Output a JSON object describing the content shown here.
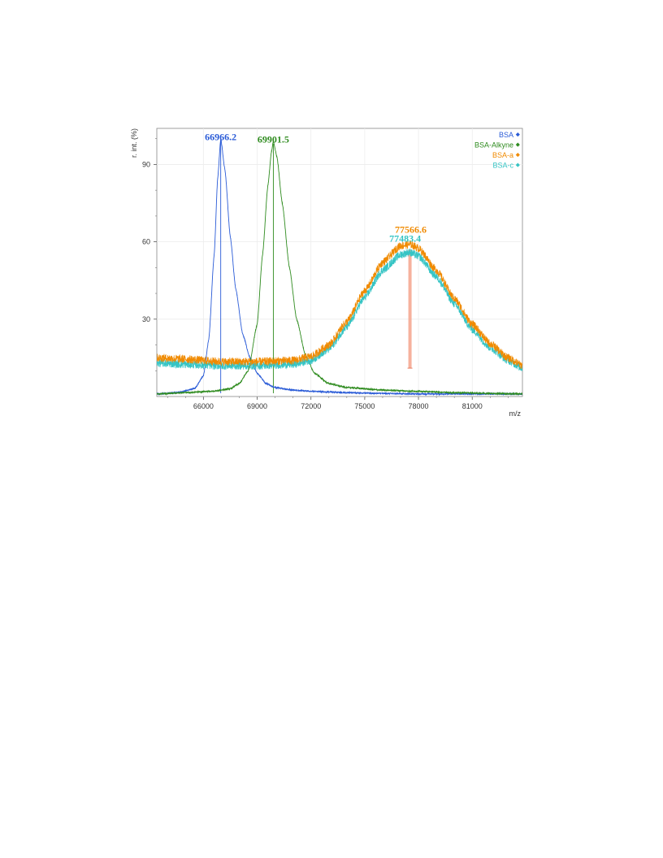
{
  "chart_data": {
    "type": "line",
    "xlabel": "m/z",
    "ylabel": "r. int. (%)",
    "xlim": [
      63400,
      83800
    ],
    "ylim": [
      0,
      104
    ],
    "x_ticks": [
      66000,
      69000,
      72000,
      75000,
      78000,
      81000
    ],
    "x_tick_labels": [
      "66000",
      "69000",
      "72000",
      "75000",
      "78000",
      "81000"
    ],
    "y_ticks": [
      30,
      60,
      90
    ],
    "y_tick_labels": [
      "30",
      "60",
      "90"
    ],
    "grid": true,
    "legend_position": "top-right",
    "series": [
      {
        "name": "BSA",
        "color": "#2a5bd7",
        "x": [
          63500,
          64500,
          65500,
          66000,
          66300,
          66600,
          66800,
          66967,
          67200,
          67500,
          67800,
          68200,
          68600,
          69000,
          69500,
          70000,
          71000,
          72000,
          74000,
          76000,
          78000,
          80000,
          82000,
          83800
        ],
        "values": [
          1,
          1.5,
          3,
          8,
          22,
          55,
          85,
          100,
          88,
          62,
          42,
          24,
          15,
          9,
          5,
          3.5,
          2.5,
          2,
          1.5,
          1.2,
          1,
          1,
          1,
          1
        ]
      },
      {
        "name": "BSA-Alkyne",
        "color": "#2e8b1e",
        "x": [
          63500,
          65000,
          66500,
          67500,
          68000,
          68500,
          69000,
          69300,
          69600,
          69800,
          69902,
          70100,
          70400,
          70800,
          71200,
          71700,
          72200,
          73000,
          74000,
          76000,
          78000,
          80000,
          82000,
          83800
        ],
        "values": [
          1,
          1.5,
          2,
          3,
          5,
          10,
          28,
          55,
          82,
          95,
          99,
          93,
          75,
          50,
          30,
          16,
          9,
          5,
          3.5,
          2.5,
          2,
          1.5,
          1.2,
          1
        ]
      },
      {
        "name": "BSA-a",
        "color": "#f08a00",
        "x": [
          63500,
          65000,
          67000,
          69000,
          71000,
          72000,
          73000,
          74000,
          75000,
          76000,
          77000,
          77567,
          78000,
          79000,
          80000,
          81000,
          82000,
          83000,
          83800
        ],
        "values": [
          15,
          14.5,
          13.5,
          13.5,
          14,
          15.5,
          20,
          29,
          41,
          52,
          58.5,
          59,
          57.5,
          49,
          38,
          28,
          20.5,
          15,
          12
        ]
      },
      {
        "name": "BSA-c",
        "color": "#35c4c4",
        "x": [
          63500,
          65000,
          67000,
          69000,
          71000,
          72000,
          73000,
          74000,
          75000,
          76000,
          77000,
          77483,
          78000,
          79000,
          80000,
          81000,
          82000,
          83000,
          83800
        ],
        "values": [
          13,
          12.5,
          12,
          12,
          12.5,
          14,
          18.5,
          27,
          38.5,
          49,
          55,
          56,
          54.5,
          46.5,
          36,
          26,
          19,
          14,
          11
        ]
      }
    ],
    "annotations": [
      {
        "text": "66966.2",
        "x": 66966.2,
        "series": "BSA",
        "color": "#2a5bd7"
      },
      {
        "text": "69901.5",
        "x": 69901.5,
        "series": "BSA-Alkyne",
        "color": "#2e8b1e"
      },
      {
        "text": "77566.6",
        "x": 77566.6,
        "series": "BSA-a",
        "color": "#f08a00"
      },
      {
        "text": "77483.4",
        "x": 77483.4,
        "series": "BSA-c",
        "color": "#35c4c4"
      }
    ],
    "peak_marker": {
      "x": 77525,
      "y_low": 11,
      "y_high": 57,
      "color": "#f4a38c"
    }
  }
}
